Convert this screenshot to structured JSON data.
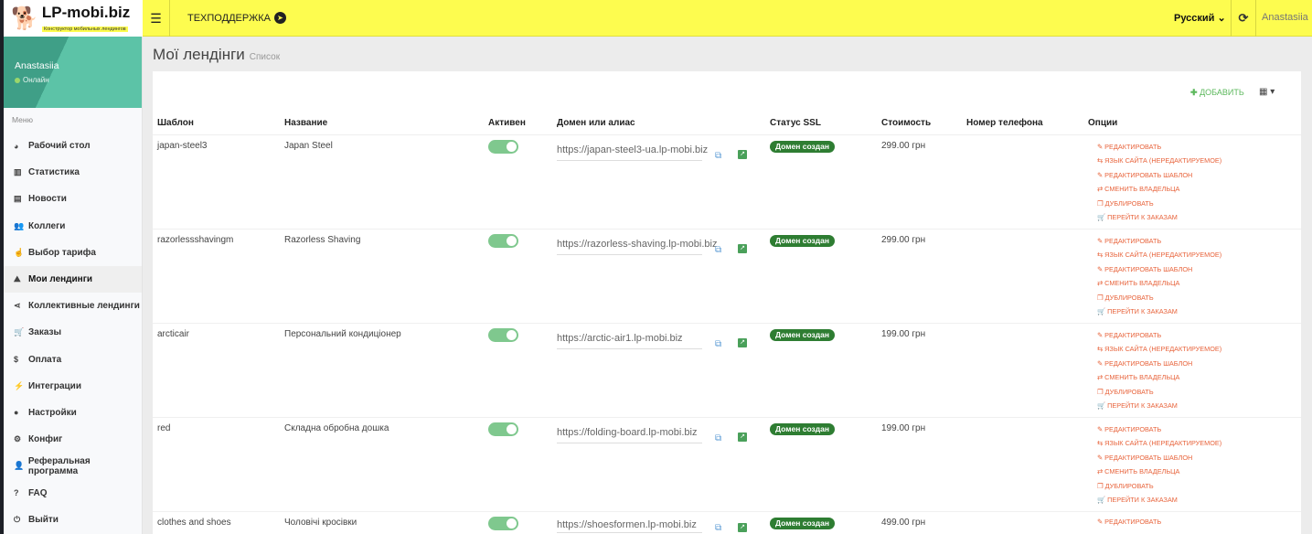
{
  "header": {
    "logo_text": "LP-mobi.biz",
    "logo_sub": "Конструктор мобильных лендингов",
    "support": "ТЕХПОДДЕРЖКА",
    "language": "Русский",
    "user": "Anastasiia"
  },
  "sidebar": {
    "user": "Anastasiia",
    "status": "Онлайн",
    "menu_label": "Меню",
    "items": [
      {
        "label": "Рабочий стол",
        "icon": "dashboard-icon"
      },
      {
        "label": "Статистика",
        "icon": "bar-chart-icon"
      },
      {
        "label": "Новости",
        "icon": "newspaper-icon"
      },
      {
        "label": "Коллеги",
        "icon": "users-icon"
      },
      {
        "label": "Выбор тарифа",
        "icon": "hand-pointer-icon"
      },
      {
        "label": "Мои лендинги",
        "icon": "landings-icon",
        "active": true
      },
      {
        "label": "Коллективные лендинги",
        "icon": "share-icon"
      },
      {
        "label": "Заказы",
        "icon": "cart-icon"
      },
      {
        "label": "Оплата",
        "icon": "dollar-icon"
      },
      {
        "label": "Интеграции",
        "icon": "plug-icon"
      },
      {
        "label": "Настройки",
        "icon": "user-icon"
      },
      {
        "label": "Конфиг",
        "icon": "cogs-icon"
      },
      {
        "label": "Реферальная программа",
        "icon": "user-plus-icon"
      },
      {
        "label": "FAQ",
        "icon": "question-icon"
      },
      {
        "label": "Выйти",
        "icon": "power-icon"
      }
    ]
  },
  "page": {
    "title": "Мої лендінги",
    "subtitle": "Список",
    "add": "ДОБАВИТЬ"
  },
  "table": {
    "columns": [
      "Шаблон",
      "Название",
      "Активен",
      "Домен или алиас",
      "Статус SSL",
      "Стоимость",
      "Номер телефона",
      "Опции"
    ],
    "options": [
      "РЕДАКТИРОВАТЬ",
      "ЯЗЫК САЙТА (НЕРЕДАКТИРУЕМОЕ)",
      "РЕДАКТИРОВАТЬ ШАБЛОН",
      "СМЕНИТЬ ВЛАДЕЛЬЦА",
      "ДУБЛИРОВАТЬ",
      "ПЕРЕЙТИ К ЗАКАЗАМ"
    ],
    "rows": [
      {
        "template": "japan-steel3",
        "name": "Japan Steel",
        "active": true,
        "domain": "https://japan-steel3-ua.lp-mobi.biz",
        "ssl": "Домен создан",
        "price": "299.00 грн",
        "phone": ""
      },
      {
        "template": "razorlessshavingm",
        "name": "Razorless Shaving",
        "active": true,
        "domain": "https://razorless-shaving.lp-mobi.biz",
        "ssl": "Домен создан",
        "price": "299.00 грн",
        "phone": ""
      },
      {
        "template": "arcticair",
        "name": "Персональний кондиціонер",
        "active": true,
        "domain": "https://arctic-air1.lp-mobi.biz",
        "ssl": "Домен создан",
        "price": "199.00 грн",
        "phone": ""
      },
      {
        "template": "red",
        "name": "Складна обробна дошка",
        "active": true,
        "domain": "https://folding-board.lp-mobi.biz",
        "ssl": "Домен создан",
        "price": "199.00 грн",
        "phone": ""
      },
      {
        "template": "clothes and shoes",
        "name": "Чоловічі кросівки",
        "active": true,
        "domain": "https://shoesformen.lp-mobi.biz",
        "ssl": "Домен создан",
        "price": "499.00 грн",
        "phone": ""
      }
    ]
  },
  "colors": {
    "header": "#fdfc4f",
    "accent": "#5cc3a7",
    "ssl": "#2e7d32",
    "options": "#e8643c"
  }
}
